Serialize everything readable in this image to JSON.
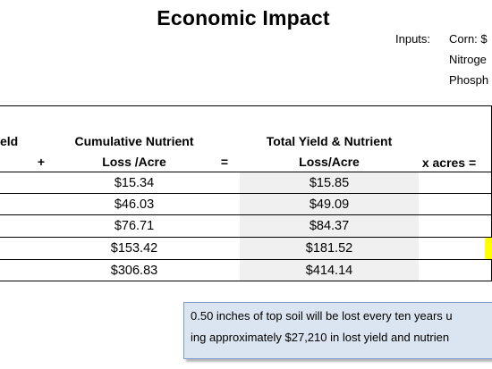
{
  "title": "Economic Impact",
  "inputs": {
    "label": "Inputs:",
    "items": [
      "Corn: $",
      "Nitroge",
      "Phosph"
    ]
  },
  "table": {
    "headers": {
      "col1": "eld",
      "plus": "+",
      "col2_line1": "Cumulative Nutrient",
      "col2_line2": "Loss /Acre",
      "equals": "=",
      "col3_line1": "Total Yield & Nutrient",
      "col3_line2": "Loss/Acre",
      "col4": "x acres ="
    },
    "rows": [
      {
        "nutrient_loss": "$15.34",
        "total_loss": "$15.85"
      },
      {
        "nutrient_loss": "$46.03",
        "total_loss": "$49.09"
      },
      {
        "nutrient_loss": "$76.71",
        "total_loss": "$84.37"
      },
      {
        "nutrient_loss": "$153.42",
        "total_loss": "$181.52"
      },
      {
        "nutrient_loss": "$306.83",
        "total_loss": "$414.14"
      }
    ]
  },
  "note": {
    "line1": "0.50 inches of top soil will be lost every ten years u",
    "line2": "ing approximately $27,210 in lost yield and nutrien"
  }
}
